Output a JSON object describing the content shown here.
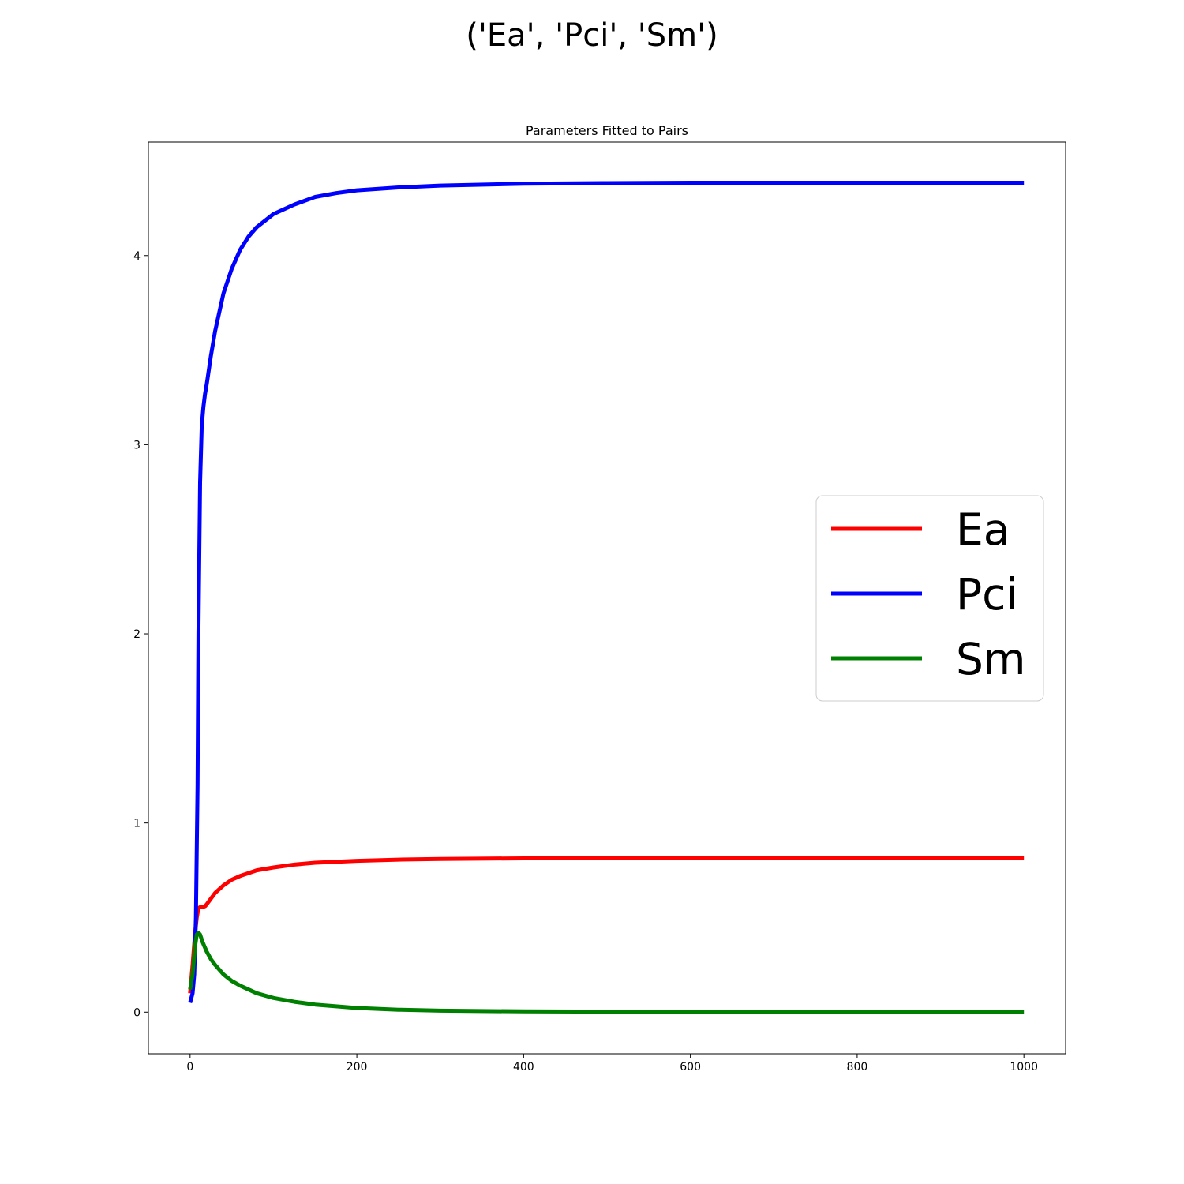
{
  "figure": {
    "suptitle": "('Ea', 'Pci', 'Sm')"
  },
  "chart_data": {
    "type": "line",
    "title": "Parameters Fitted to Pairs",
    "xlabel": "",
    "ylabel": "",
    "xlim": [
      -50,
      1050
    ],
    "ylim": [
      -0.22,
      4.6
    ],
    "xticks": [
      0,
      200,
      400,
      600,
      800,
      1000
    ],
    "yticks": [
      0,
      1,
      2,
      3,
      4
    ],
    "legend_position": "center-right",
    "grid": false,
    "series": [
      {
        "name": "Ea",
        "color": "#ff0000",
        "x": [
          0,
          3,
          6,
          8,
          10,
          12,
          15,
          18,
          20,
          25,
          30,
          40,
          50,
          60,
          80,
          100,
          125,
          150,
          200,
          250,
          300,
          400,
          500,
          600,
          800,
          1000
        ],
        "y": [
          0.1,
          0.25,
          0.42,
          0.5,
          0.55,
          0.555,
          0.555,
          0.56,
          0.57,
          0.6,
          0.63,
          0.67,
          0.7,
          0.72,
          0.75,
          0.765,
          0.78,
          0.79,
          0.8,
          0.806,
          0.81,
          0.813,
          0.815,
          0.815,
          0.815,
          0.815
        ]
      },
      {
        "name": "Pci",
        "color": "#0000ff",
        "x": [
          0,
          3,
          5,
          7,
          9,
          10,
          12,
          14,
          16,
          18,
          20,
          25,
          30,
          40,
          50,
          60,
          70,
          80,
          100,
          125,
          150,
          175,
          200,
          250,
          300,
          400,
          500,
          600,
          800,
          1000
        ],
        "y": [
          0.05,
          0.1,
          0.2,
          0.5,
          1.2,
          2.0,
          2.8,
          3.1,
          3.2,
          3.27,
          3.32,
          3.47,
          3.6,
          3.8,
          3.93,
          4.03,
          4.1,
          4.15,
          4.22,
          4.27,
          4.31,
          4.33,
          4.345,
          4.36,
          4.37,
          4.38,
          4.383,
          4.385,
          4.385,
          4.385
        ]
      },
      {
        "name": "Sm",
        "color": "#008000",
        "x": [
          0,
          3,
          6,
          8,
          10,
          12,
          15,
          20,
          25,
          30,
          40,
          50,
          60,
          80,
          100,
          125,
          150,
          200,
          250,
          300,
          400,
          500,
          600,
          800,
          1000
        ],
        "y": [
          0.12,
          0.2,
          0.35,
          0.41,
          0.42,
          0.41,
          0.37,
          0.32,
          0.28,
          0.25,
          0.2,
          0.165,
          0.14,
          0.1,
          0.075,
          0.055,
          0.04,
          0.022,
          0.013,
          0.008,
          0.004,
          0.003,
          0.002,
          0.002,
          0.002
        ]
      }
    ]
  }
}
